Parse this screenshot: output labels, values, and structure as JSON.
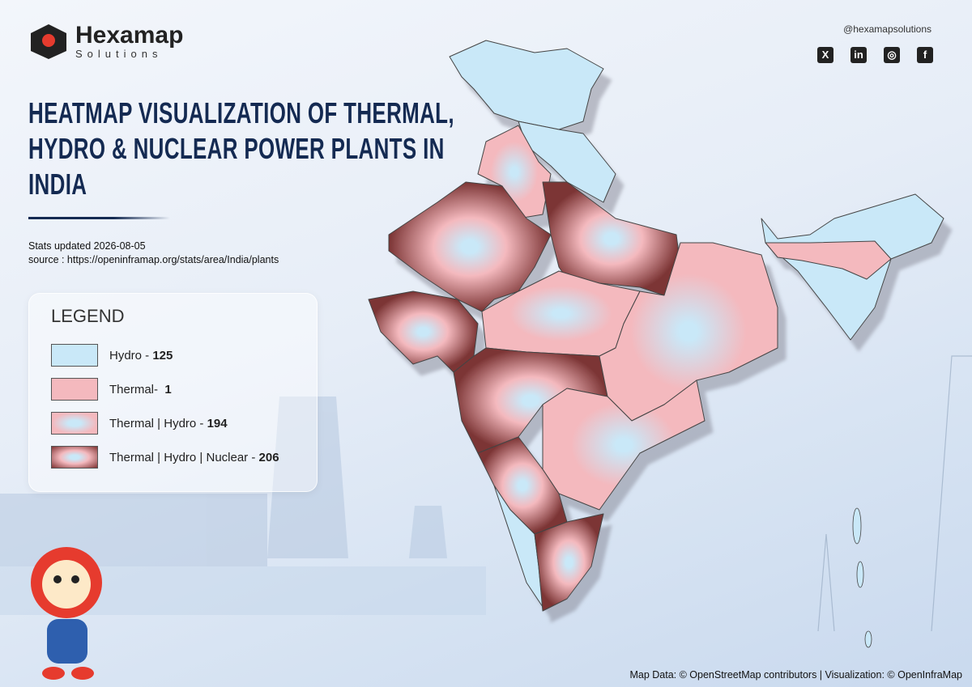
{
  "brand": {
    "name": "Hexamap",
    "tagline": "Solutions"
  },
  "social": {
    "handle": "@hexamapsolutions"
  },
  "title": {
    "lines": [
      "HEATMAP VISUALIZATION OF THERMAL,",
      "HYDRO & NUCLEAR POWER PLANTS IN",
      "INDIA"
    ]
  },
  "stats": {
    "updated": "Stats updated 2026-08-05",
    "source": "source : https://openinframap.org/stats/area/India/plants"
  },
  "legend": {
    "title": "LEGEND",
    "items": [
      {
        "label": "Hydro - ",
        "count": 125
      },
      {
        "label": "Thermal-  ",
        "count": 1
      },
      {
        "label": "Thermal | Hydro - ",
        "count": 194
      },
      {
        "label": "Thermal | Hydro | Nuclear - ",
        "count": 206
      }
    ]
  },
  "footer": {
    "credit": "Map Data: © OpenStreetMap contributors | Visualization: © OpenInfraMap"
  }
}
